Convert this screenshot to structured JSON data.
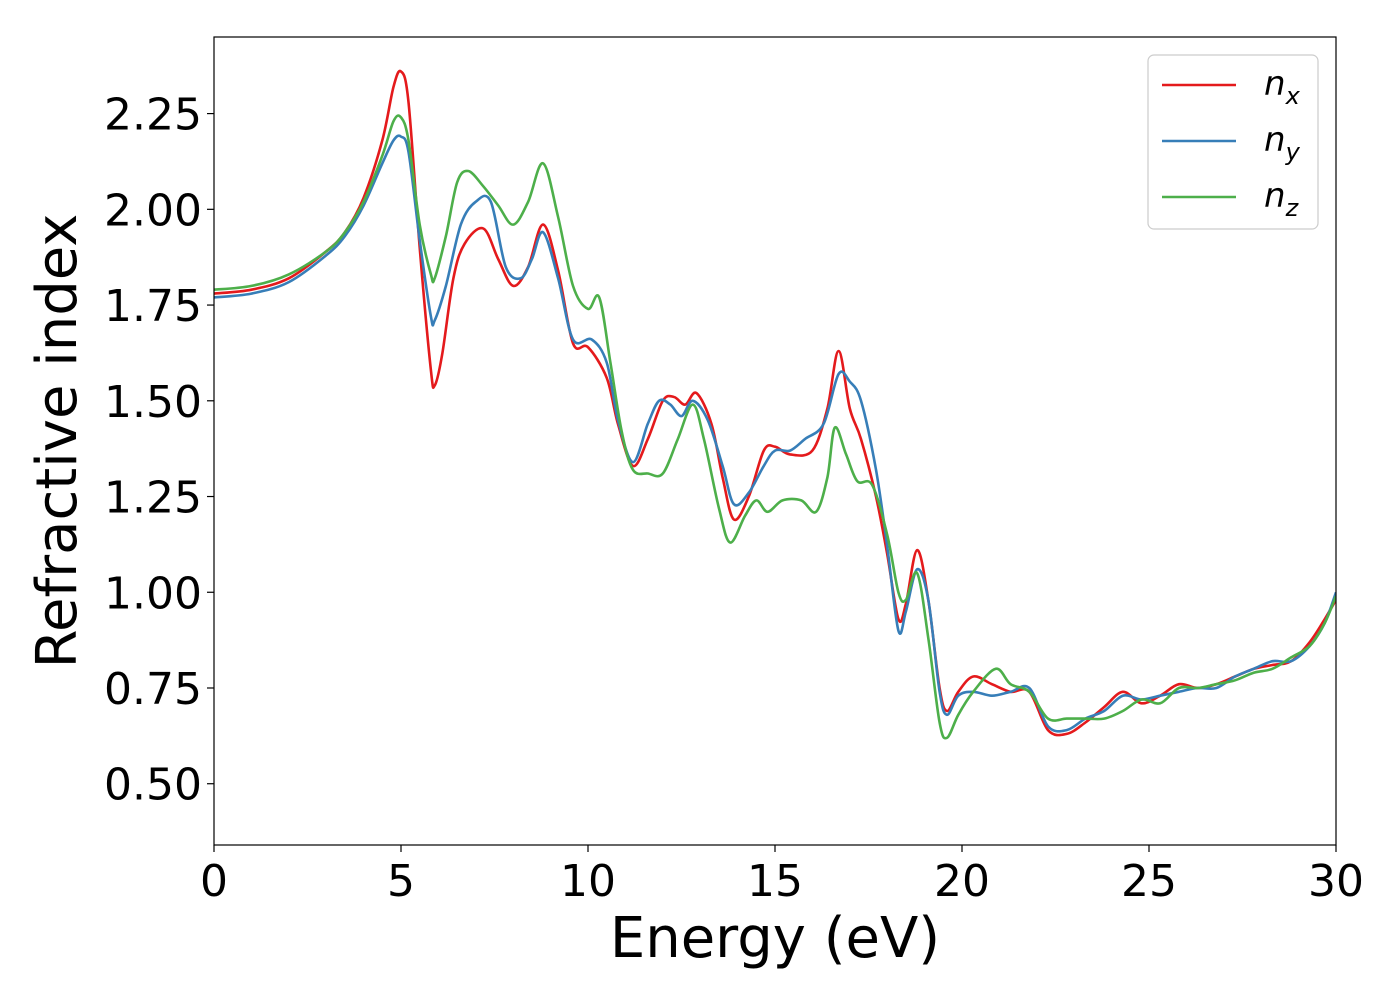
{
  "chart_data": {
    "type": "line",
    "title": "",
    "xlabel": "Energy (eV)",
    "ylabel": "Refractive index",
    "xlim": [
      0,
      30
    ],
    "ylim": [
      0.34,
      2.45
    ],
    "xticks": [
      0,
      5,
      10,
      15,
      20,
      25,
      30
    ],
    "xtick_labels": [
      "0",
      "5",
      "10",
      "15",
      "20",
      "25",
      "30"
    ],
    "yticks": [
      0.5,
      0.75,
      1.0,
      1.25,
      1.5,
      1.75,
      2.0,
      2.25
    ],
    "ytick_labels": [
      "0.50",
      "0.75",
      "1.00",
      "1.25",
      "1.50",
      "1.75",
      "2.00",
      "2.25"
    ],
    "grid": false,
    "legend_position": "top-right",
    "series": [
      {
        "name": "n",
        "subscript": "x",
        "color": "#e41a1c",
        "points": [
          [
            0,
            1.78
          ],
          [
            1,
            1.79
          ],
          [
            2,
            1.82
          ],
          [
            3,
            1.89
          ],
          [
            3.5,
            1.94
          ],
          [
            4,
            2.03
          ],
          [
            4.5,
            2.18
          ],
          [
            4.8,
            2.32
          ],
          [
            5.0,
            2.36
          ],
          [
            5.2,
            2.28
          ],
          [
            5.5,
            1.9
          ],
          [
            5.8,
            1.58
          ],
          [
            5.9,
            1.54
          ],
          [
            6.1,
            1.62
          ],
          [
            6.4,
            1.82
          ],
          [
            6.7,
            1.91
          ],
          [
            7.2,
            1.95
          ],
          [
            7.6,
            1.87
          ],
          [
            8.0,
            1.8
          ],
          [
            8.4,
            1.85
          ],
          [
            8.8,
            1.96
          ],
          [
            9.2,
            1.84
          ],
          [
            9.6,
            1.65
          ],
          [
            10.0,
            1.64
          ],
          [
            10.5,
            1.56
          ],
          [
            10.8,
            1.44
          ],
          [
            11.2,
            1.33
          ],
          [
            11.6,
            1.4
          ],
          [
            12.0,
            1.5
          ],
          [
            12.3,
            1.51
          ],
          [
            12.6,
            1.49
          ],
          [
            12.9,
            1.52
          ],
          [
            13.3,
            1.44
          ],
          [
            13.6,
            1.3
          ],
          [
            13.9,
            1.19
          ],
          [
            14.3,
            1.25
          ],
          [
            14.7,
            1.37
          ],
          [
            15.0,
            1.38
          ],
          [
            15.4,
            1.36
          ],
          [
            16.0,
            1.37
          ],
          [
            16.4,
            1.48
          ],
          [
            16.7,
            1.63
          ],
          [
            17.0,
            1.48
          ],
          [
            17.3,
            1.4
          ],
          [
            17.7,
            1.25
          ],
          [
            18.0,
            1.1
          ],
          [
            18.3,
            0.93
          ],
          [
            18.5,
            0.97
          ],
          [
            18.8,
            1.11
          ],
          [
            19.1,
            0.98
          ],
          [
            19.4,
            0.75
          ],
          [
            19.6,
            0.69
          ],
          [
            19.9,
            0.74
          ],
          [
            20.3,
            0.78
          ],
          [
            20.8,
            0.76
          ],
          [
            21.3,
            0.74
          ],
          [
            21.8,
            0.74
          ],
          [
            22.3,
            0.64
          ],
          [
            22.8,
            0.63
          ],
          [
            23.3,
            0.66
          ],
          [
            23.8,
            0.7
          ],
          [
            24.3,
            0.74
          ],
          [
            24.8,
            0.71
          ],
          [
            25.3,
            0.73
          ],
          [
            25.8,
            0.76
          ],
          [
            26.3,
            0.75
          ],
          [
            26.8,
            0.76
          ],
          [
            27.3,
            0.78
          ],
          [
            27.8,
            0.8
          ],
          [
            28.3,
            0.81
          ],
          [
            28.8,
            0.82
          ],
          [
            29.3,
            0.87
          ],
          [
            29.7,
            0.93
          ],
          [
            30,
            0.98
          ]
        ]
      },
      {
        "name": "n",
        "subscript": "y",
        "color": "#377eb8",
        "points": [
          [
            0,
            1.77
          ],
          [
            1,
            1.78
          ],
          [
            2,
            1.81
          ],
          [
            3,
            1.88
          ],
          [
            3.5,
            1.93
          ],
          [
            4,
            2.01
          ],
          [
            4.5,
            2.12
          ],
          [
            4.8,
            2.18
          ],
          [
            5.0,
            2.19
          ],
          [
            5.2,
            2.15
          ],
          [
            5.5,
            1.92
          ],
          [
            5.8,
            1.72
          ],
          [
            5.9,
            1.71
          ],
          [
            6.2,
            1.8
          ],
          [
            6.6,
            1.96
          ],
          [
            7.0,
            2.02
          ],
          [
            7.4,
            2.02
          ],
          [
            7.8,
            1.85
          ],
          [
            8.2,
            1.82
          ],
          [
            8.5,
            1.87
          ],
          [
            8.8,
            1.94
          ],
          [
            9.2,
            1.82
          ],
          [
            9.6,
            1.66
          ],
          [
            10.1,
            1.66
          ],
          [
            10.5,
            1.6
          ],
          [
            10.8,
            1.45
          ],
          [
            11.2,
            1.34
          ],
          [
            11.6,
            1.44
          ],
          [
            11.9,
            1.5
          ],
          [
            12.2,
            1.49
          ],
          [
            12.5,
            1.46
          ],
          [
            12.8,
            1.5
          ],
          [
            13.2,
            1.45
          ],
          [
            13.6,
            1.33
          ],
          [
            13.9,
            1.23
          ],
          [
            14.3,
            1.26
          ],
          [
            14.7,
            1.33
          ],
          [
            15.0,
            1.37
          ],
          [
            15.4,
            1.37
          ],
          [
            15.8,
            1.4
          ],
          [
            16.3,
            1.44
          ],
          [
            16.7,
            1.57
          ],
          [
            17.0,
            1.55
          ],
          [
            17.3,
            1.5
          ],
          [
            17.7,
            1.32
          ],
          [
            18.0,
            1.12
          ],
          [
            18.3,
            0.9
          ],
          [
            18.5,
            0.95
          ],
          [
            18.8,
            1.06
          ],
          [
            19.1,
            0.98
          ],
          [
            19.4,
            0.74
          ],
          [
            19.6,
            0.68
          ],
          [
            19.9,
            0.73
          ],
          [
            20.3,
            0.74
          ],
          [
            20.8,
            0.73
          ],
          [
            21.3,
            0.74
          ],
          [
            21.8,
            0.75
          ],
          [
            22.3,
            0.65
          ],
          [
            22.8,
            0.64
          ],
          [
            23.3,
            0.67
          ],
          [
            23.8,
            0.69
          ],
          [
            24.3,
            0.73
          ],
          [
            24.8,
            0.72
          ],
          [
            25.3,
            0.73
          ],
          [
            25.8,
            0.74
          ],
          [
            26.3,
            0.75
          ],
          [
            26.8,
            0.75
          ],
          [
            27.3,
            0.78
          ],
          [
            27.8,
            0.8
          ],
          [
            28.3,
            0.82
          ],
          [
            28.8,
            0.82
          ],
          [
            29.3,
            0.86
          ],
          [
            29.7,
            0.92
          ],
          [
            30,
            1.0
          ]
        ]
      },
      {
        "name": "n",
        "subscript": "z",
        "color": "#4daf4a",
        "points": [
          [
            0,
            1.79
          ],
          [
            1,
            1.8
          ],
          [
            2,
            1.83
          ],
          [
            3,
            1.89
          ],
          [
            3.5,
            1.94
          ],
          [
            4,
            2.02
          ],
          [
            4.5,
            2.14
          ],
          [
            4.8,
            2.23
          ],
          [
            5.0,
            2.24
          ],
          [
            5.2,
            2.18
          ],
          [
            5.5,
            1.96
          ],
          [
            5.8,
            1.83
          ],
          [
            5.9,
            1.82
          ],
          [
            6.2,
            1.93
          ],
          [
            6.5,
            2.07
          ],
          [
            6.8,
            2.1
          ],
          [
            7.2,
            2.06
          ],
          [
            7.6,
            2.01
          ],
          [
            8.0,
            1.96
          ],
          [
            8.4,
            2.02
          ],
          [
            8.8,
            2.12
          ],
          [
            9.2,
            1.98
          ],
          [
            9.6,
            1.8
          ],
          [
            10.0,
            1.74
          ],
          [
            10.3,
            1.77
          ],
          [
            10.6,
            1.6
          ],
          [
            10.9,
            1.42
          ],
          [
            11.2,
            1.32
          ],
          [
            11.6,
            1.31
          ],
          [
            12.0,
            1.31
          ],
          [
            12.4,
            1.4
          ],
          [
            12.8,
            1.49
          ],
          [
            13.1,
            1.4
          ],
          [
            13.5,
            1.22
          ],
          [
            13.8,
            1.13
          ],
          [
            14.2,
            1.2
          ],
          [
            14.5,
            1.24
          ],
          [
            14.8,
            1.21
          ],
          [
            15.2,
            1.24
          ],
          [
            15.7,
            1.24
          ],
          [
            16.1,
            1.21
          ],
          [
            16.4,
            1.3
          ],
          [
            16.6,
            1.43
          ],
          [
            16.9,
            1.36
          ],
          [
            17.2,
            1.29
          ],
          [
            17.6,
            1.28
          ],
          [
            18.0,
            1.15
          ],
          [
            18.3,
            1.0
          ],
          [
            18.5,
            0.98
          ],
          [
            18.8,
            1.05
          ],
          [
            19.1,
            0.88
          ],
          [
            19.4,
            0.66
          ],
          [
            19.6,
            0.62
          ],
          [
            19.9,
            0.68
          ],
          [
            20.3,
            0.74
          ],
          [
            20.9,
            0.8
          ],
          [
            21.3,
            0.76
          ],
          [
            21.8,
            0.74
          ],
          [
            22.3,
            0.67
          ],
          [
            22.8,
            0.67
          ],
          [
            23.3,
            0.67
          ],
          [
            23.8,
            0.67
          ],
          [
            24.3,
            0.69
          ],
          [
            24.8,
            0.72
          ],
          [
            25.3,
            0.71
          ],
          [
            25.8,
            0.75
          ],
          [
            26.3,
            0.75
          ],
          [
            26.8,
            0.76
          ],
          [
            27.3,
            0.77
          ],
          [
            27.8,
            0.79
          ],
          [
            28.3,
            0.8
          ],
          [
            28.8,
            0.83
          ],
          [
            29.3,
            0.86
          ],
          [
            29.7,
            0.92
          ],
          [
            30,
            0.99
          ]
        ]
      }
    ]
  }
}
